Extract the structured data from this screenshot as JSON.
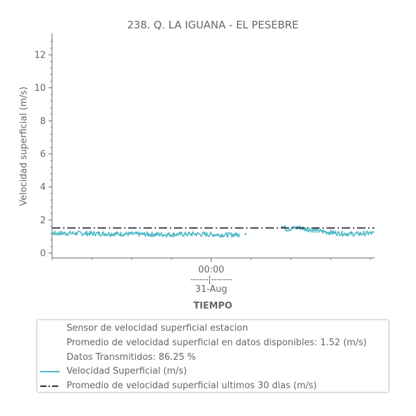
{
  "chart_data": {
    "type": "line",
    "title": "238. Q. LA IGUANA - EL PESEBRE",
    "xlabel": "TIEMPO",
    "ylabel": "Velocidad superficial (m/s)",
    "ylim": [
      0,
      13.2
    ],
    "yticks": [
      0,
      2,
      4,
      6,
      8,
      10,
      12
    ],
    "x_tick_label": "00:00\n------|-------\n31-Aug",
    "x_range_hours": [
      -20,
      20.5
    ],
    "x_major_tick_hours": [
      0
    ],
    "x_minor_tick_hours": [
      -20,
      -15,
      -10,
      -5,
      5,
      10,
      15,
      20
    ],
    "grid": false,
    "legend_placement": "bottom",
    "series": [
      {
        "name": "Velocidad Superficial (m/s)",
        "color": "#4db8c6",
        "segments": [
          {
            "x_hours": [
              -22,
              -18,
              -14,
              -10,
              -6,
              -2,
              2,
              3.6
            ],
            "y": [
              1.18,
              1.2,
              1.18,
              1.15,
              1.12,
              1.15,
              1.1,
              1.12
            ]
          },
          {
            "x_hours": [
              4.3
            ],
            "y": [
              1.15
            ]
          },
          {
            "x_hours": [
              8.8,
              9.5,
              11,
              12,
              14,
              16,
              18,
              20,
              22
            ],
            "y": [
              1.7,
              1.45,
              1.55,
              1.45,
              1.3,
              1.2,
              1.15,
              1.2,
              1.15
            ]
          }
        ],
        "noise_amplitude": 0.15
      },
      {
        "name": "Promedio de velocidad superficial ultimos 30 dias (m/s)",
        "color": "#2b2b3b",
        "style": "dashdot",
        "value": 1.52
      }
    ],
    "legend_info": [
      "Sensor de velocidad superficial estacion",
      "Promedio de velocidad superficial en datos disponibles: 1.52 (m/s)",
      "Datos Transmitidos: 86.25 %"
    ]
  }
}
